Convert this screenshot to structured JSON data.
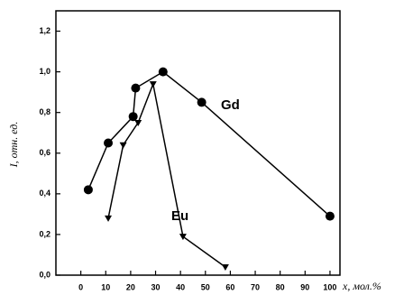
{
  "chart_data": {
    "type": "line",
    "x_label": "x, мол.%",
    "y_label": "I, отн. ед.",
    "xlim": [
      -10,
      104
    ],
    "ylim": [
      0,
      1.3
    ],
    "xticks": [
      0,
      10,
      20,
      30,
      40,
      50,
      60,
      70,
      80,
      90,
      100
    ],
    "yticks": [
      {
        "value": 0,
        "label": "0,0"
      },
      {
        "value": 0.2,
        "label": "0,2"
      },
      {
        "value": 0.4,
        "label": "0,4"
      },
      {
        "value": 0.6,
        "label": "0,6"
      },
      {
        "value": 0.8,
        "label": "0,8"
      },
      {
        "value": 1.0,
        "label": "1,0"
      },
      {
        "value": 1.2,
        "label": "1,2"
      }
    ],
    "series": [
      {
        "name": "Gd",
        "color": "#000000",
        "marker": "circle",
        "x": [
          3,
          11,
          21,
          22,
          33,
          48.5,
          100
        ],
        "values": [
          0.42,
          0.65,
          0.78,
          0.92,
          1.0,
          0.85,
          0.29
        ]
      },
      {
        "name": "Eu",
        "color": "#000000",
        "marker": "triangle-down",
        "x": [
          11,
          17,
          23,
          29,
          41,
          58
        ],
        "values": [
          0.28,
          0.64,
          0.75,
          0.94,
          0.19,
          0.04
        ]
      }
    ]
  }
}
